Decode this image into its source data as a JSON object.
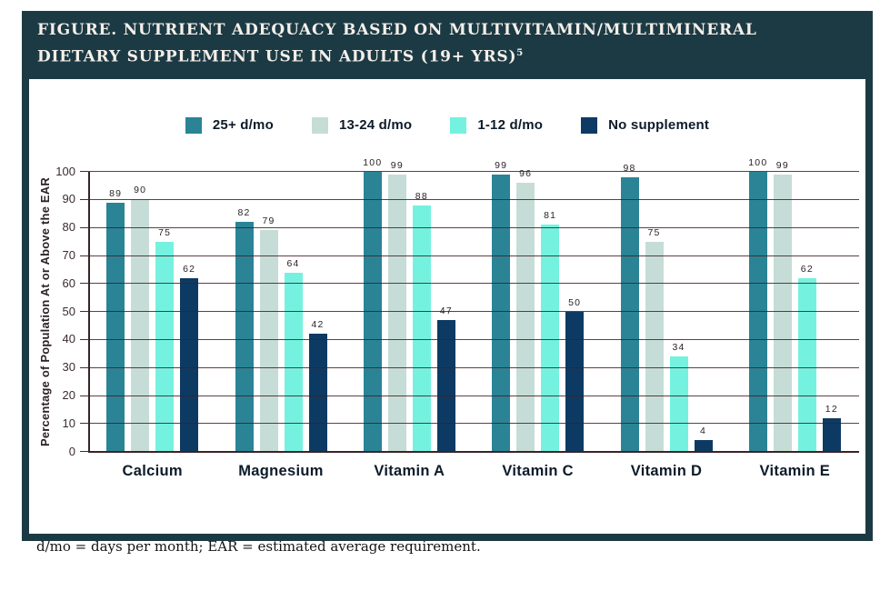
{
  "header": {
    "title_line1": "FIGURE. NUTRIENT ADEQUACY BASED ON MULTIVITAMIN/MULTIMINERAL",
    "title_line2": "DIETARY SUPPLEMENT USE IN ADULTS (19+ YRS)",
    "title_superscript": "5"
  },
  "chart_data": {
    "type": "bar",
    "categories": [
      "Calcium",
      "Magnesium",
      "Vitamin A",
      "Vitamin C",
      "Vitamin D",
      "Vitamin E"
    ],
    "series": [
      {
        "name": "25+ d/mo",
        "color": "#2a8496",
        "values": [
          89,
          82,
          100,
          99,
          98,
          100
        ]
      },
      {
        "name": "13-24 d/mo",
        "color": "#c5ddd6",
        "values": [
          90,
          79,
          99,
          96,
          75,
          99
        ]
      },
      {
        "name": "1-12 d/mo",
        "color": "#74f2df",
        "values": [
          75,
          64,
          88,
          81,
          34,
          62
        ]
      },
      {
        "name": "No supplement",
        "color": "#0d3a63",
        "values": [
          62,
          42,
          47,
          50,
          4,
          12
        ]
      }
    ],
    "title": "FIGURE. NUTRIENT ADEQUACY BASED ON MULTIVITAMIN/MULTIMINERAL DIETARY SUPPLEMENT USE IN ADULTS (19+ YRS)5",
    "xlabel": "",
    "ylabel": "Percentage of Population At or Above the EAR",
    "ylim": [
      0,
      100
    ],
    "yticks": [
      0,
      10,
      20,
      30,
      40,
      50,
      60,
      70,
      80,
      90,
      100
    ],
    "grid": true,
    "legend_position": "top",
    "bar_value_labels": true
  },
  "footnote": "d/mo = days per month; EAR = estimated average requirement.",
  "colors": {
    "frame": "#1c3a44",
    "gridline": "#44201e",
    "axis": "#3a2327",
    "title_text": "#f4efe9",
    "label_text": "#0d1b2a"
  }
}
